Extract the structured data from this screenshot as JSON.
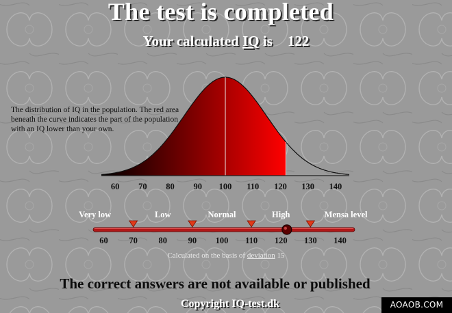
{
  "title": "The test is completed",
  "iq_result": {
    "prefix": "Your calculated ",
    "iq_word": "IQ",
    "suffix": " is",
    "score": "122",
    "score_value": 122
  },
  "description": "The distribution of IQ in the population. The red area beneath the curve indicates the part of the population with an IQ lower than your own.",
  "distribution": {
    "mean": 100,
    "deviation": 15,
    "axis_min": 55,
    "axis_max": 145,
    "ticks": [
      "60",
      "70",
      "80",
      "90",
      "100",
      "110",
      "120",
      "130",
      "140"
    ],
    "tick_values": [
      60,
      70,
      80,
      90,
      100,
      110,
      120,
      130,
      140
    ]
  },
  "scale": {
    "bands": [
      {
        "label": "Very low",
        "center": 57
      },
      {
        "label": "Low",
        "center": 80
      },
      {
        "label": "Normal",
        "center": 100
      },
      {
        "label": "High",
        "center": 120
      },
      {
        "label": "Mensa level",
        "center": 142
      }
    ],
    "markers": [
      70,
      90,
      110,
      130
    ],
    "ticks": [
      "60",
      "70",
      "80",
      "90",
      "100",
      "110",
      "120",
      "130",
      "140"
    ],
    "tick_values": [
      60,
      70,
      80,
      90,
      100,
      110,
      120,
      130,
      140
    ],
    "position": 122
  },
  "basis": {
    "prefix": "Calculated on the basis of ",
    "link": "deviation",
    "value": " 15"
  },
  "answers_notice": "The correct answers are not available or published",
  "copyright": "Copyright IQ-test.dk",
  "watermark": "AOAOB.COM",
  "colors": {
    "background": "#9a9a9a",
    "curve_fill_dark": "#000000",
    "curve_fill_red": "#ff0000",
    "slider_bar": "#b01818",
    "marker": "#e03a1a"
  }
}
